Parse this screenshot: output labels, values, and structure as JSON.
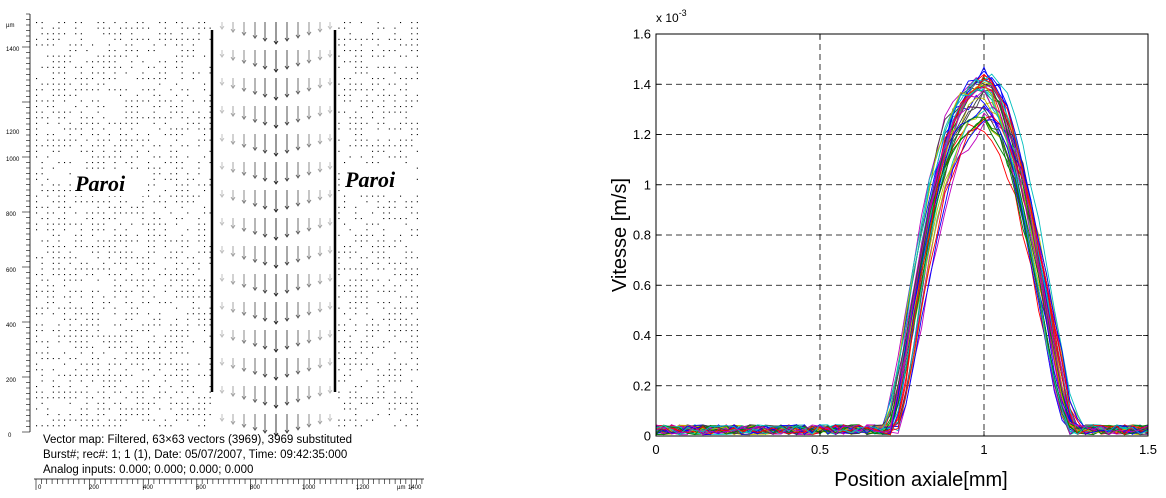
{
  "vector_map": {
    "y_unit": "µm",
    "x_unit": "µm",
    "y_ticks": [
      "1400",
      "1200",
      "1000",
      "800",
      "600",
      "400",
      "200",
      "0"
    ],
    "x_ticks": [
      "0",
      "200",
      "400",
      "600",
      "800",
      "1000",
      "1200",
      "1400"
    ],
    "wall_label_left": "Paroi",
    "wall_label_right": "Paroi",
    "info_line_1": "Vector map: Filtered, 63×63 vectors (3969), 3969 substituted",
    "info_line_2": "Burst#; rec#: 1; 1 (1), Date: 05/07/2007, Time: 09:42:35:000",
    "info_line_3": "Analog inputs: 0.000; 0.000; 0.000; 0.000"
  },
  "chart_data": {
    "type": "line",
    "title": "",
    "xlabel": "Position axiale[mm]",
    "ylabel": "Vitesse [m/s]",
    "y_exponent_label": "x 10",
    "y_exponent_power": "-3",
    "xlim": [
      0,
      1.5
    ],
    "ylim": [
      0,
      1.6
    ],
    "x_ticks": [
      0,
      0.5,
      1,
      1.5
    ],
    "x_tick_labels": [
      "0",
      "0.5",
      "1",
      "1.5"
    ],
    "y_ticks": [
      0,
      0.2,
      0.4,
      0.6,
      0.8,
      1,
      1.2,
      1.4,
      1.6
    ],
    "y_tick_labels": [
      "0",
      "0.2",
      "0.4",
      "0.6",
      "0.8",
      "1",
      "1.2",
      "1.4",
      "1.6"
    ],
    "grid": true,
    "grid_style": "dashed",
    "series_count": 40,
    "series_colors": [
      "#0000ff",
      "#008000",
      "#ff0000",
      "#00bfbf",
      "#bf00bf",
      "#bfbf00",
      "#404040"
    ],
    "profile": {
      "x": [
        0,
        0.05,
        0.1,
        0.15,
        0.2,
        0.25,
        0.3,
        0.35,
        0.4,
        0.45,
        0.5,
        0.55,
        0.6,
        0.65,
        0.7,
        0.72,
        0.75,
        0.8,
        0.85,
        0.9,
        0.95,
        1.0,
        1.05,
        1.1,
        1.15,
        1.2,
        1.25,
        1.28,
        1.3,
        1.35,
        1.4,
        1.45,
        1.5
      ],
      "y": [
        0.02,
        0.02,
        0.02,
        0.02,
        0.02,
        0.02,
        0.02,
        0.02,
        0.02,
        0.02,
        0.02,
        0.02,
        0.02,
        0.02,
        0.02,
        0.03,
        0.2,
        0.6,
        0.95,
        1.2,
        1.32,
        1.37,
        1.3,
        1.1,
        0.8,
        0.45,
        0.1,
        0.03,
        0.02,
        0.02,
        0.02,
        0.02,
        0.02
      ]
    }
  }
}
